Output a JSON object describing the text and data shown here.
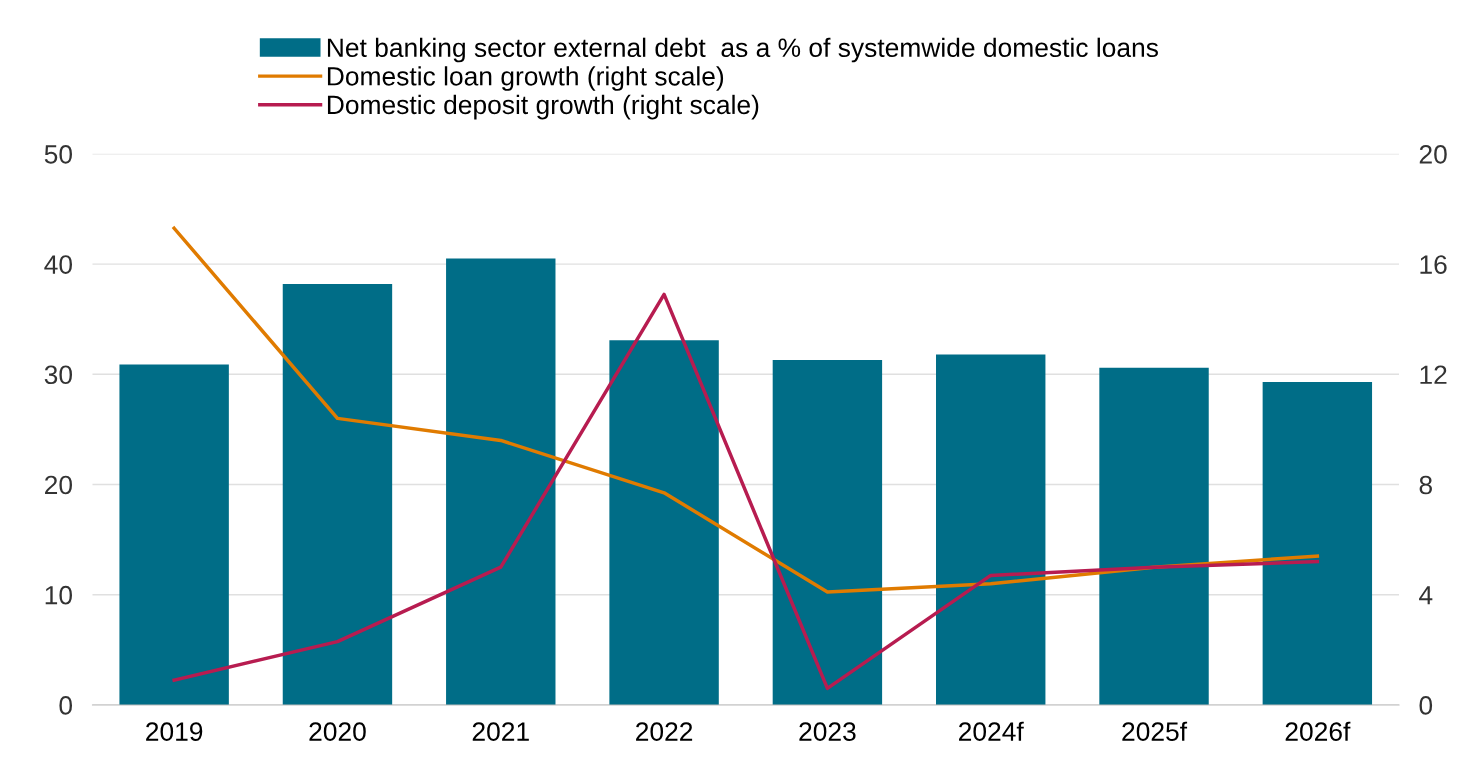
{
  "chart_data": {
    "type": "bar",
    "categories": [
      "2019",
      "2020",
      "2021",
      "2022",
      "2023",
      "2024f",
      "2025f",
      "2026f"
    ],
    "series": [
      {
        "name": "Net banking sector external debt  as a % of systemwide domestic loans",
        "color": "#006d87",
        "values": [
          30.9,
          38.2,
          40.5,
          33.1,
          31.3,
          31.8,
          30.6,
          29.3
        ]
      },
      {
        "name": "Domestic loan growth (right scale)",
        "type": "line",
        "axis": "y2",
        "color": "#e07b00",
        "values": [
          17.3,
          10.4,
          9.6,
          7.7,
          4.1,
          4.4,
          5.0,
          5.4
        ]
      },
      {
        "name": "Domestic deposit growth (right scale)",
        "type": "line",
        "axis": "y2",
        "color": "#b71c50",
        "values": [
          0.9,
          2.3,
          5.0,
          14.9,
          0.6,
          4.7,
          5.0,
          5.2
        ]
      }
    ],
    "ylim": [
      0,
      50
    ],
    "yticks": [
      0,
      10,
      20,
      30,
      40,
      50
    ],
    "y2lim": [
      0,
      20
    ],
    "y2ticks": [
      0,
      4,
      8,
      12,
      16,
      20
    ],
    "grid": "y",
    "legend": "top",
    "marker": "none",
    "line_style": "solid"
  }
}
